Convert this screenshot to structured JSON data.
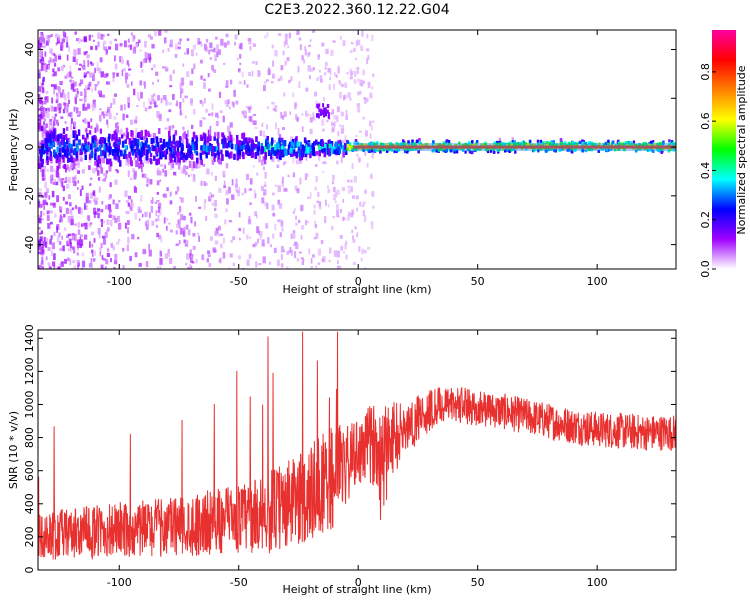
{
  "title": "C2E3.2022.360.12.22.G04",
  "chart_data": [
    {
      "type": "heatmap",
      "xlabel": "Height of straight line (km)",
      "ylabel": "Frequency (Hz)",
      "xlim": [
        -134,
        133
      ],
      "ylim": [
        -50,
        48
      ],
      "x_ticks": [
        -100,
        -50,
        0,
        50,
        100
      ],
      "y_ticks": [
        -40,
        -20,
        0,
        20,
        40
      ],
      "colorbar": {
        "label": "Normalized spectral amplitude",
        "range": [
          0,
          0.97
        ],
        "ticks": [
          0.0,
          0.2,
          0.4,
          0.6,
          0.8
        ],
        "colors": [
          "#ffffff",
          "#9f00ff",
          "#0000ff",
          "#00ffff",
          "#00ff00",
          "#ffff00",
          "#ff8000",
          "#ff0000",
          "#ff00a0"
        ]
      },
      "summary": {
        "ridge_frequency_hz": 0,
        "ridge_halfwidth_hz": [
          [
            -134,
            10
          ],
          [
            -60,
            6
          ],
          [
            -20,
            3
          ],
          [
            0,
            2
          ],
          [
            133,
            2
          ]
        ],
        "cluster_near_x_km": [
          -18,
          -12
        ],
        "cluster_near_freq_hz": [
          13,
          18
        ]
      }
    },
    {
      "type": "line",
      "xlabel": "Height of straight line (km)",
      "ylabel": "SNR (10 * v/v)",
      "xlim": [
        -134,
        133
      ],
      "ylim": [
        0,
        1450
      ],
      "x_ticks": [
        -100,
        -50,
        0,
        50,
        100
      ],
      "y_ticks": [
        0,
        200,
        400,
        600,
        800,
        1000,
        1200,
        1400
      ],
      "color": "#e8302f",
      "envelope": {
        "x": [
          -134,
          -120,
          -100,
          -80,
          -60,
          -45,
          -35,
          -25,
          -15,
          -10,
          -5,
          0,
          5,
          10,
          15,
          20,
          25,
          30,
          35,
          40,
          50,
          60,
          70,
          80,
          90,
          100,
          110,
          120,
          133
        ],
        "mean": [
          200,
          220,
          240,
          260,
          290,
          320,
          360,
          420,
          520,
          560,
          620,
          700,
          760,
          760,
          800,
          850,
          920,
          970,
          990,
          1000,
          980,
          960,
          930,
          900,
          870,
          850,
          840,
          830,
          830
        ],
        "spread": [
          140,
          160,
          170,
          180,
          200,
          220,
          260,
          280,
          300,
          320,
          260,
          200,
          240,
          260,
          220,
          180,
          150,
          130,
          120,
          110,
          110,
          110,
          110,
          110,
          110,
          110,
          110,
          110,
          110
        ]
      }
    }
  ]
}
